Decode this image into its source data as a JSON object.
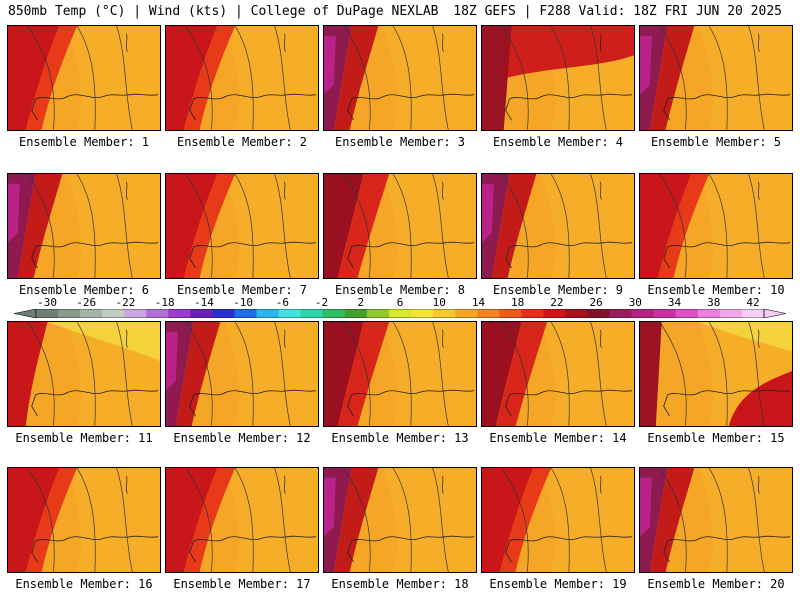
{
  "header": {
    "left": "850mb Temp (°C) | Wind (kts) | College of DuPage NEXLAB",
    "right": "18Z GEFS | F288 Valid: 18Z FRI JUN 20 2025"
  },
  "members": [
    {
      "label": "Ensemble Member: 1",
      "zone": "west-red"
    },
    {
      "label": "Ensemble Member: 2",
      "zone": "west-red"
    },
    {
      "label": "Ensemble Member: 3",
      "zone": "west-magenta"
    },
    {
      "label": "Ensemble Member: 4",
      "zone": "north-red"
    },
    {
      "label": "Ensemble Member: 5",
      "zone": "west-magenta"
    },
    {
      "label": "Ensemble Member: 6",
      "zone": "west-magenta"
    },
    {
      "label": "Ensemble Member: 7",
      "zone": "west-red"
    },
    {
      "label": "Ensemble Member: 8",
      "zone": "west-dark"
    },
    {
      "label": "Ensemble Member: 9",
      "zone": "west-magenta"
    },
    {
      "label": "Ensemble Member: 10",
      "zone": "west-red"
    },
    {
      "label": "Ensemble Member: 11",
      "zone": "north-yellow"
    },
    {
      "label": "Ensemble Member: 12",
      "zone": "west-magenta"
    },
    {
      "label": "Ensemble Member: 13",
      "zone": "west-dark"
    },
    {
      "label": "Ensemble Member: 14",
      "zone": "west-dark"
    },
    {
      "label": "Ensemble Member: 15",
      "zone": "south-dark"
    },
    {
      "label": "Ensemble Member: 16",
      "zone": "west-red"
    },
    {
      "label": "Ensemble Member: 17",
      "zone": "west-red"
    },
    {
      "label": "Ensemble Member: 18",
      "zone": "west-magenta"
    },
    {
      "label": "Ensemble Member: 19",
      "zone": "west-red"
    },
    {
      "label": "Ensemble Member: 20",
      "zone": "west-magenta"
    }
  ],
  "colorbar": {
    "unit": "°C",
    "ticks": [
      "-30",
      "-26",
      "-22",
      "-18",
      "-14",
      "-10",
      "-6",
      "-2",
      "2",
      "6",
      "10",
      "14",
      "18",
      "22",
      "26",
      "30",
      "34",
      "38",
      "42"
    ],
    "colors": [
      "#6f7f73",
      "#8a9a8d",
      "#a6b3a7",
      "#c2ccc3",
      "#c9a6df",
      "#b26fd8",
      "#9b3ccf",
      "#6a1fb8",
      "#2b2fd1",
      "#1f6ee8",
      "#27b7ee",
      "#42e0e0",
      "#2fd3a8",
      "#2fbf63",
      "#43a02d",
      "#8fca2a",
      "#d8e82a",
      "#f5e636",
      "#f7c92e",
      "#f6a626",
      "#f48421",
      "#ef5a1d",
      "#e63118",
      "#cf1515",
      "#a5101a",
      "#84112a",
      "#9b1c5e",
      "#b52284",
      "#cd2ea5",
      "#e04fc7",
      "#ee7ee0",
      "#f3a8ee",
      "#f7cdf6"
    ]
  }
}
